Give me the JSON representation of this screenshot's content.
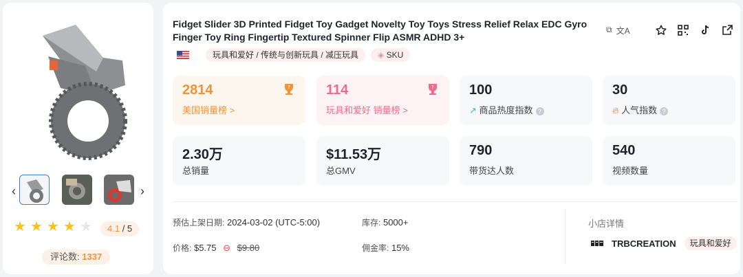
{
  "product": {
    "title": "Fidget Slider 3D Printed Fidget Toy Gadget Novelty Toy Toys Stress Relief Relax EDC Gyro Finger Toy Ring Fingertip Textured Spinner Flip ASMR ADHD 3+",
    "category_path": "玩具和爱好 / 传统与创新玩具 / 减压玩具",
    "sku_label": "SKU",
    "rating": "4.1",
    "rating_max": "/ 5",
    "rating_stars": 4,
    "reviews_label": "评论数:",
    "reviews_count": "1337"
  },
  "stats": [
    {
      "value": "2814",
      "label": "美国销量榜 >"
    },
    {
      "value": "114",
      "label": "玩具和爱好 销量榜 >"
    },
    {
      "value": "100",
      "label": "商品热度指数"
    },
    {
      "value": "30",
      "label": "人气指数"
    },
    {
      "value": "2.30万",
      "label": "总销量"
    },
    {
      "value": "$11.53万",
      "label": "总GMV"
    },
    {
      "value": "790",
      "label": "带货达人数"
    },
    {
      "value": "540",
      "label": "视频数量"
    }
  ],
  "info": {
    "launch_label": "预估上架日期:",
    "launch_value": "2024-03-02 (UTC-5:00)",
    "stock_label": "库存:",
    "stock_value": "5000+",
    "price_label": "价格:",
    "price_value": "$5.75",
    "price_original": "$9.80",
    "commission_label": "佣金率:",
    "commission_value": "15%"
  },
  "shop": {
    "header": "小店详情",
    "name": "TRBCREATION",
    "category": "玩具和爱好"
  },
  "colors": {
    "accent_orange": "#f0933a",
    "accent_pink": "#ef6b8c",
    "star": "#f7c21b"
  }
}
